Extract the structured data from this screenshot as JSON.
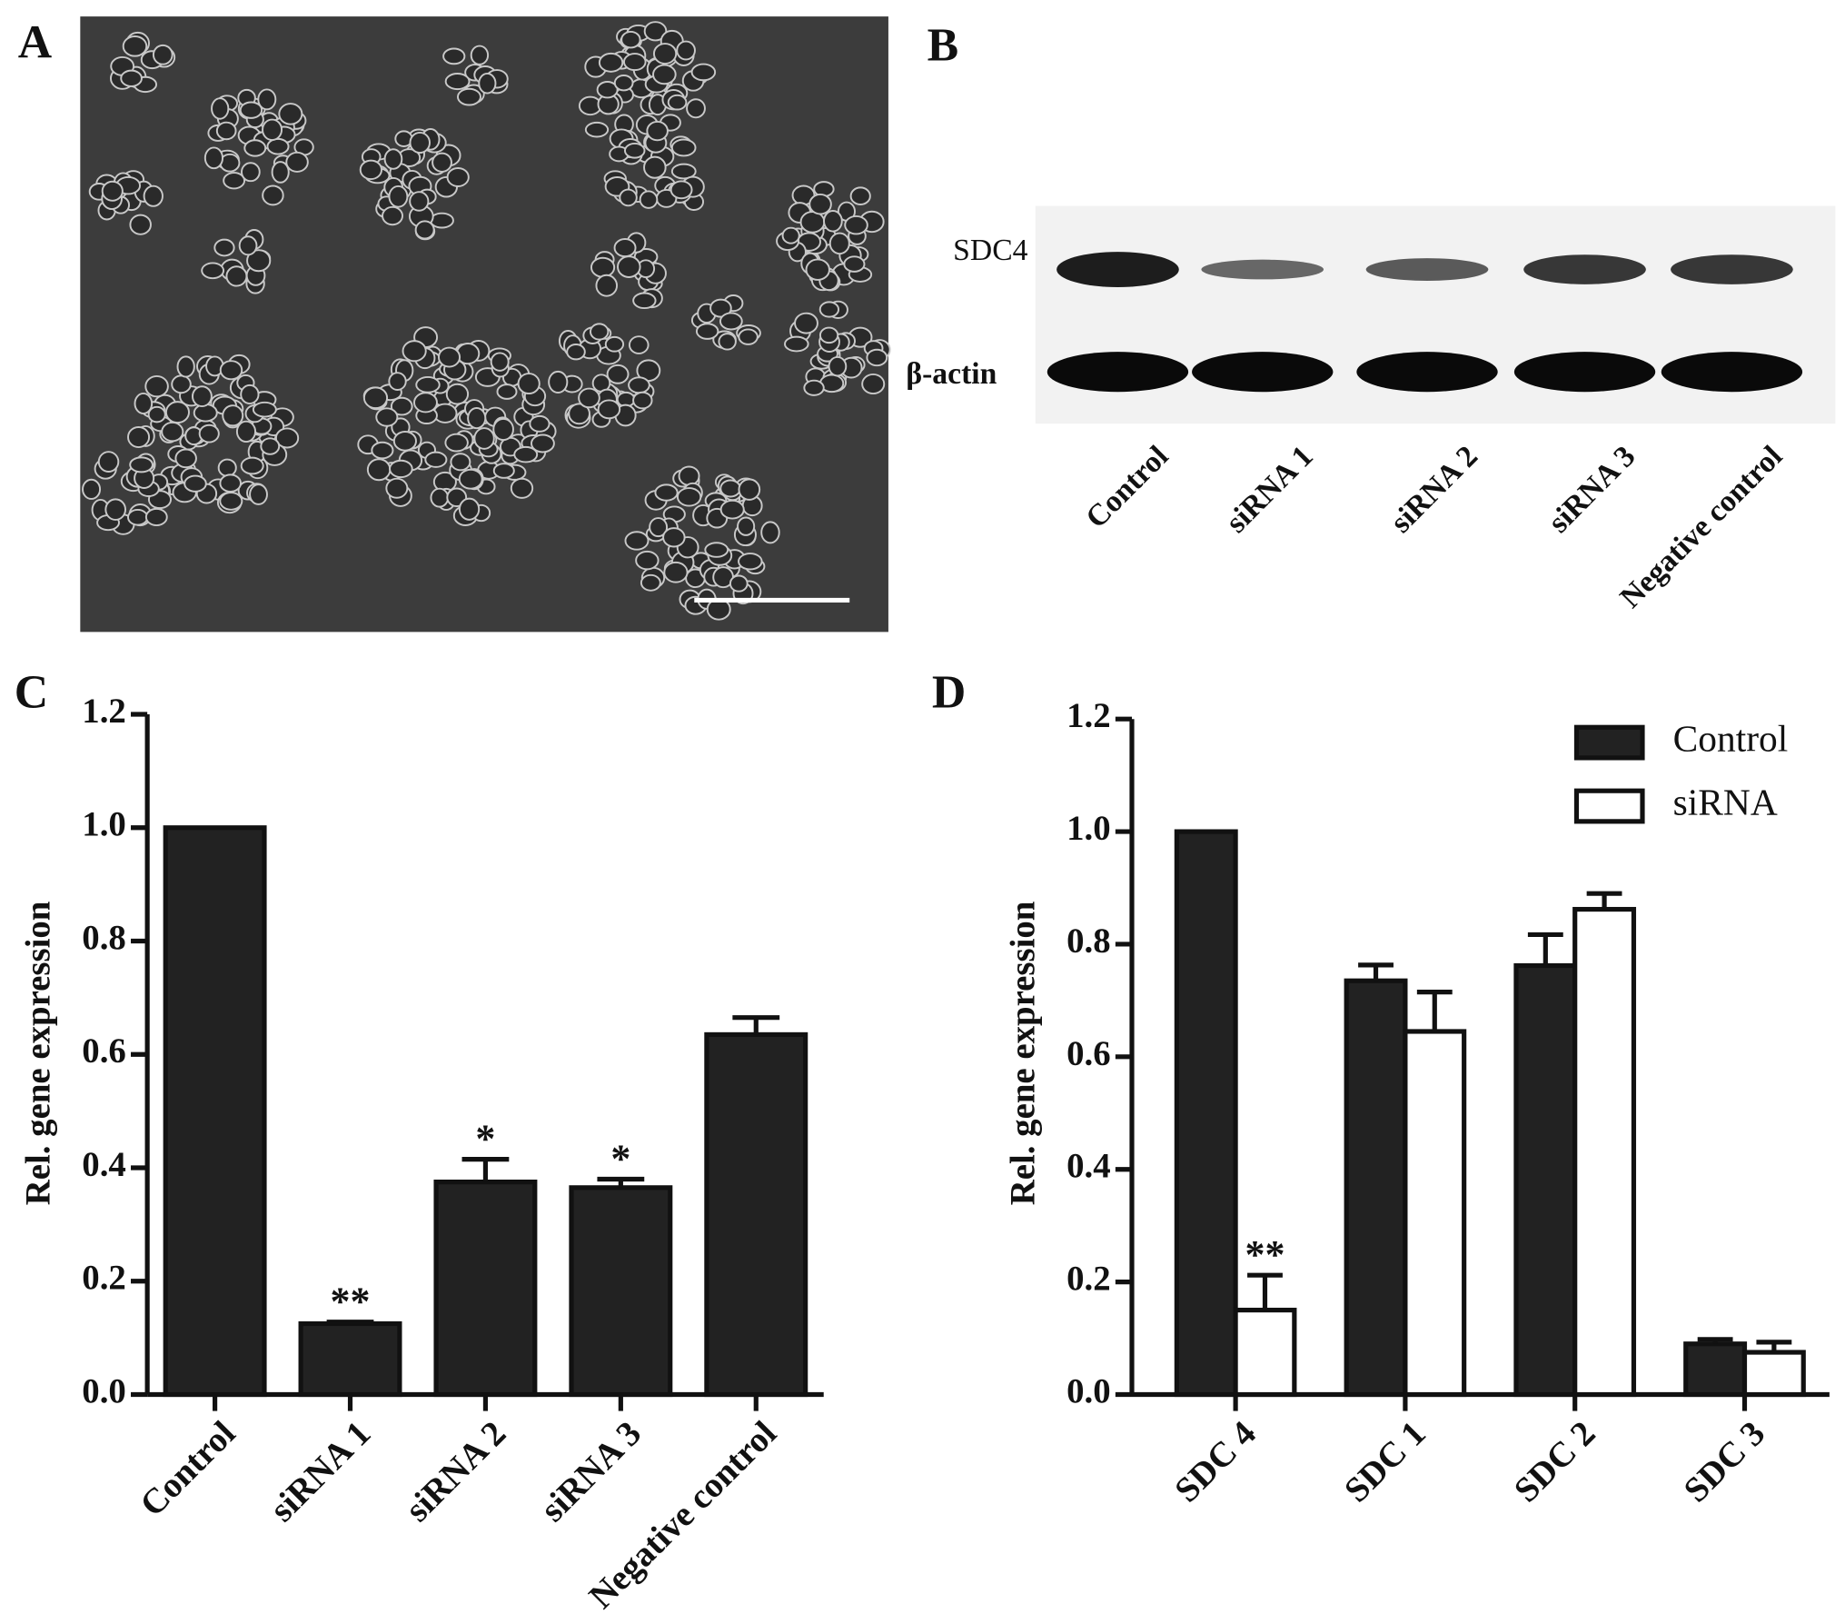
{
  "figure": {
    "panel_labels": [
      "A",
      "B",
      "C",
      "D"
    ],
    "blot": {
      "row_labels": [
        "SDC4",
        "β-actin"
      ],
      "lane_labels": [
        "Control",
        "siRNA 1",
        "siRNA 2",
        "siRNA 3",
        "Negative control"
      ]
    }
  },
  "chart_data": [
    {
      "type": "bar",
      "y_label": "Rel. gene expression",
      "categories": [
        "Control",
        "siRNA 1",
        "siRNA 2",
        "siRNA 3",
        "Negative control"
      ],
      "values": [
        1.0,
        0.125,
        0.375,
        0.365,
        0.635
      ],
      "errors": [
        null,
        0.003,
        0.04,
        0.015,
        0.03
      ],
      "annotations": [
        null,
        "**",
        "*",
        "*",
        null
      ],
      "color": "#222222",
      "ylim": [
        0,
        1.2
      ],
      "yticks": [
        {
          "value": 0,
          "label": "0.0"
        },
        0.2,
        0.4,
        0.6,
        0.8,
        {
          "value": 1,
          "label": "1.0"
        },
        1.2
      ]
    },
    {
      "type": "bar",
      "y_label": "Rel. gene expression",
      "categories": [
        "SDC 4",
        "SDC 1",
        "SDC 2",
        "SDC 3"
      ],
      "series": [
        {
          "name": "Control",
          "color": "#222222",
          "values": [
            1.0,
            0.735,
            0.762,
            0.09
          ],
          "errors": [
            null,
            0.028,
            0.055,
            0.008
          ],
          "annotations": [
            null,
            null,
            null,
            null
          ]
        },
        {
          "name": "siRNA",
          "color": "#ffffff",
          "values": [
            0.15,
            0.645,
            0.862,
            0.075
          ],
          "errors": [
            0.062,
            0.07,
            0.028,
            0.018
          ],
          "annotations": [
            "**",
            null,
            null,
            null
          ]
        }
      ],
      "ylim": [
        0,
        1.2
      ],
      "yticks": [
        {
          "value": 0,
          "label": "0.0"
        },
        0.2,
        0.4,
        0.6,
        0.8,
        {
          "value": 1,
          "label": "1.0"
        },
        1.2
      ],
      "legend": "top-right"
    }
  ]
}
